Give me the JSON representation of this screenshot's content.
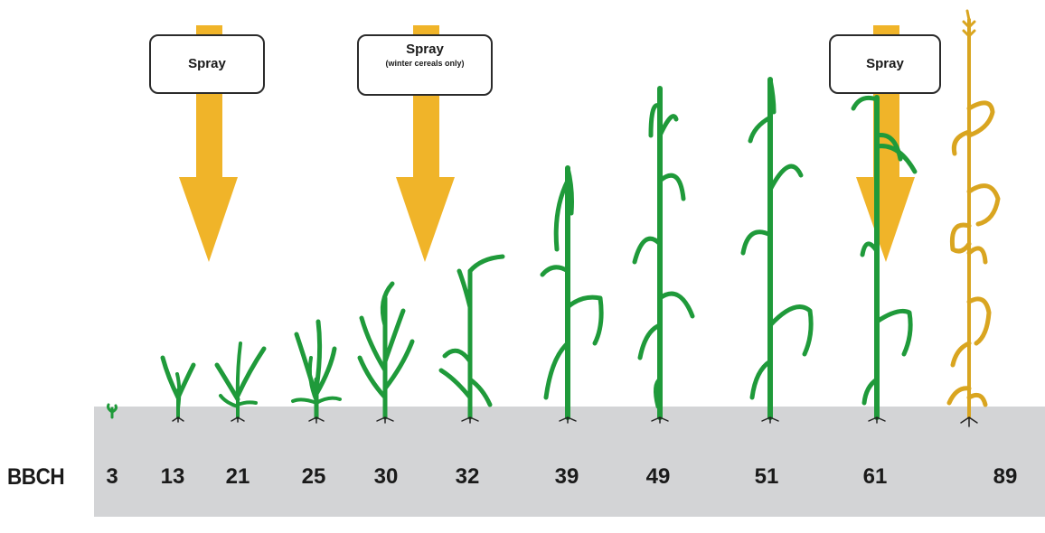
{
  "axis_label": "BBCH",
  "stages": [
    "3",
    "13",
    "21",
    "25",
    "30",
    "32",
    "39",
    "49",
    "51",
    "61",
    "89"
  ],
  "spray_boxes": [
    {
      "label": "Spray",
      "note": ""
    },
    {
      "label": "Spray",
      "note": "(winter cereals only)"
    },
    {
      "label": "Spray",
      "note": ""
    }
  ],
  "colors": {
    "arrow": "#f0b429",
    "plant_green": "#1f9a3a",
    "mature_plant": "#d9a520",
    "ground": "#d3d4d6"
  }
}
